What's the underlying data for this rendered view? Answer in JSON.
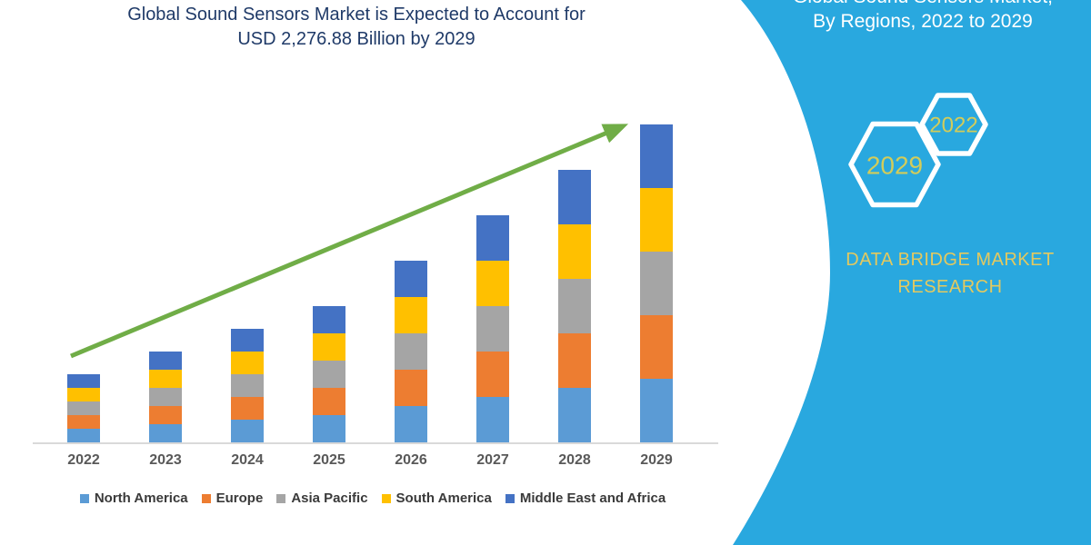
{
  "title": {
    "line1": "Global Sound Sensors Market is Expected to Account for",
    "line2": "USD 2,276.88 Billion by 2029"
  },
  "chart_data": {
    "type": "bar",
    "stacked": true,
    "title": "Global Sound Sensors Market is Expected to Account for USD 2,276.88 Billion by 2029",
    "unit": "USD Billion",
    "categories": [
      "2022",
      "2023",
      "2024",
      "2025",
      "2026",
      "2027",
      "2028",
      "2029"
    ],
    "series": [
      {
        "name": "North America",
        "color": "#5b9bd5",
        "values": [
          97.58,
          130.1,
          162.64,
          195.16,
          260.22,
          325.26,
          390.32,
          455.38
        ]
      },
      {
        "name": "Europe",
        "color": "#ed7d31",
        "values": [
          97.58,
          130.1,
          162.64,
          195.16,
          260.22,
          325.26,
          390.32,
          455.38
        ]
      },
      {
        "name": "Asia Pacific",
        "color": "#a5a5a5",
        "values": [
          97.58,
          130.1,
          162.64,
          195.16,
          260.22,
          325.26,
          390.32,
          455.38
        ]
      },
      {
        "name": "South America",
        "color": "#ffc000",
        "values": [
          97.58,
          130.1,
          162.64,
          195.16,
          260.22,
          325.26,
          390.32,
          455.38
        ]
      },
      {
        "name": "Middle East and Africa",
        "color": "#4472c4",
        "values": [
          97.58,
          130.1,
          162.64,
          195.16,
          260.22,
          325.26,
          390.32,
          455.38
        ]
      }
    ],
    "totals": [
      487.9,
      650.5,
      813.2,
      975.8,
      1301.1,
      1626.3,
      1951.6,
      2276.88
    ],
    "stated_total_2029": 2276.88,
    "xlabel": "",
    "ylabel": "",
    "ylim": [
      0,
      2400
    ],
    "gridlines": false,
    "legend_position": "bottom",
    "annotations": [
      "upward green trend arrow from 2022 to 2029"
    ]
  },
  "side_panel": {
    "heading_line1": "Global Sound Sensors Market,",
    "heading_line2": "By Regions, 2022 to 2029",
    "badges": {
      "large": "2029",
      "small": "2022"
    },
    "brand_line1": "DATA BRIDGE MARKET",
    "brand_line2": "RESEARCH"
  },
  "colors": {
    "title_text": "#1f3a68",
    "trend_arrow": "#70ad47",
    "axis_line": "#d9d9d9",
    "axis_label_text": "#595959",
    "legend_text": "#3a3a3a",
    "panel_background": "#29a8df",
    "panel_heading_text": "#ffffff",
    "badge_outline": "#ffffff",
    "badge_year_text": "#d2cc5a",
    "brand_text": "#e3c95f"
  }
}
